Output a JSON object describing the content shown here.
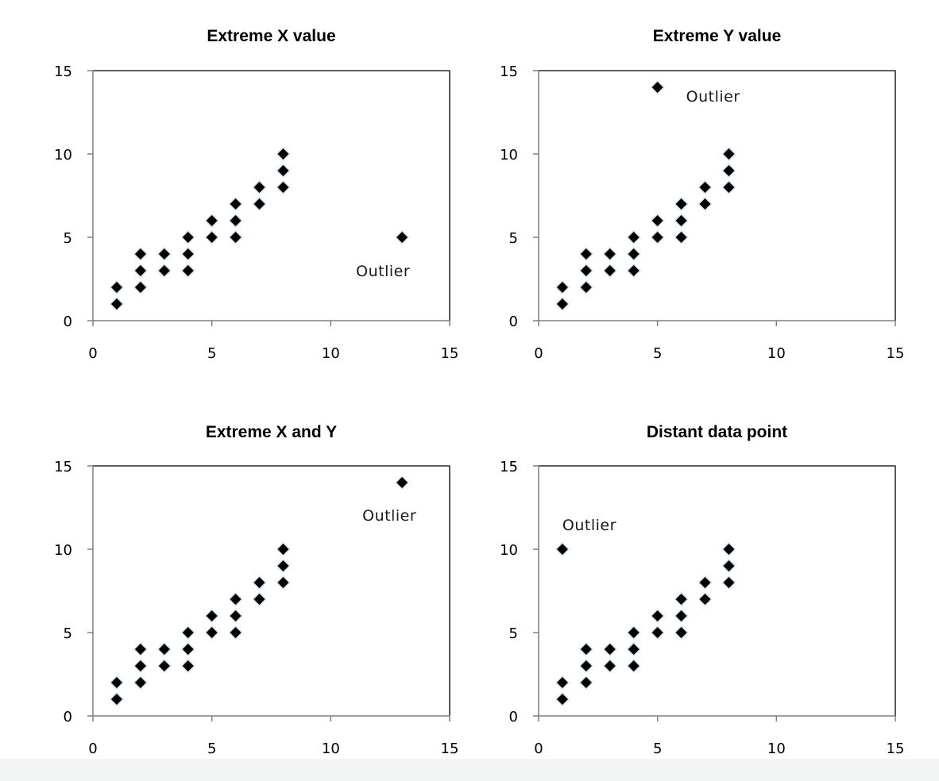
{
  "colors": {
    "marker_fill": "#000000",
    "marker_halo": "#cfe0ef",
    "axis": "#7f7f7f",
    "frame": "#000000",
    "background": "#ffffff"
  },
  "chart_data": [
    {
      "type": "scatter",
      "title": "Extreme X value",
      "xlabel": "",
      "ylabel": "",
      "xlim": [
        0,
        15
      ],
      "ylim": [
        0,
        15
      ],
      "xticks": [
        "0",
        "5",
        "10",
        "15"
      ],
      "yticks": [
        "0",
        "5",
        "10",
        "15"
      ],
      "grid": false,
      "marker": "diamond",
      "points": [
        [
          1,
          1
        ],
        [
          1,
          2
        ],
        [
          2,
          2
        ],
        [
          2,
          3
        ],
        [
          2,
          4
        ],
        [
          3,
          3
        ],
        [
          3,
          4
        ],
        [
          4,
          3
        ],
        [
          4,
          4
        ],
        [
          4,
          5
        ],
        [
          5,
          5
        ],
        [
          5,
          6
        ],
        [
          6,
          5
        ],
        [
          6,
          6
        ],
        [
          6,
          7
        ],
        [
          7,
          7
        ],
        [
          7,
          8
        ],
        [
          8,
          8
        ],
        [
          8,
          9
        ],
        [
          8,
          10
        ],
        [
          13,
          5
        ]
      ],
      "annotations": [
        {
          "text": "Outlier",
          "x": 13,
          "y": 5,
          "placement": "below-left"
        }
      ]
    },
    {
      "type": "scatter",
      "title": "Extreme Y value",
      "xlabel": "",
      "ylabel": "",
      "xlim": [
        0,
        15
      ],
      "ylim": [
        0,
        15
      ],
      "xticks": [
        "0",
        "5",
        "10",
        "15"
      ],
      "yticks": [
        "0",
        "5",
        "10",
        "15"
      ],
      "grid": false,
      "marker": "diamond",
      "points": [
        [
          1,
          1
        ],
        [
          1,
          2
        ],
        [
          2,
          2
        ],
        [
          2,
          3
        ],
        [
          2,
          4
        ],
        [
          3,
          3
        ],
        [
          3,
          4
        ],
        [
          4,
          3
        ],
        [
          4,
          4
        ],
        [
          4,
          5
        ],
        [
          5,
          5
        ],
        [
          5,
          6
        ],
        [
          6,
          5
        ],
        [
          6,
          6
        ],
        [
          6,
          7
        ],
        [
          7,
          7
        ],
        [
          7,
          8
        ],
        [
          8,
          8
        ],
        [
          8,
          9
        ],
        [
          8,
          10
        ],
        [
          5,
          14
        ]
      ],
      "annotations": [
        {
          "text": "Outlier",
          "x": 5,
          "y": 14,
          "placement": "right"
        }
      ]
    },
    {
      "type": "scatter",
      "title": "Extreme X and Y",
      "xlabel": "",
      "ylabel": "",
      "xlim": [
        0,
        15
      ],
      "ylim": [
        0,
        15
      ],
      "xticks": [
        "0",
        "5",
        "10",
        "15"
      ],
      "yticks": [
        "0",
        "5",
        "10",
        "15"
      ],
      "grid": false,
      "marker": "diamond",
      "points": [
        [
          1,
          1
        ],
        [
          1,
          2
        ],
        [
          2,
          2
        ],
        [
          2,
          3
        ],
        [
          2,
          4
        ],
        [
          3,
          3
        ],
        [
          3,
          4
        ],
        [
          4,
          3
        ],
        [
          4,
          4
        ],
        [
          4,
          5
        ],
        [
          5,
          5
        ],
        [
          5,
          6
        ],
        [
          6,
          5
        ],
        [
          6,
          6
        ],
        [
          6,
          7
        ],
        [
          7,
          7
        ],
        [
          7,
          8
        ],
        [
          8,
          8
        ],
        [
          8,
          9
        ],
        [
          8,
          10
        ],
        [
          13,
          14
        ]
      ],
      "annotations": [
        {
          "text": "Outlier",
          "x": 13,
          "y": 14,
          "placement": "below"
        }
      ]
    },
    {
      "type": "scatter",
      "title": "Distant data point",
      "xlabel": "",
      "ylabel": "",
      "xlim": [
        0,
        15
      ],
      "ylim": [
        0,
        15
      ],
      "xticks": [
        "0",
        "5",
        "10",
        "15"
      ],
      "yticks": [
        "0",
        "5",
        "10",
        "15"
      ],
      "grid": false,
      "marker": "diamond",
      "points": [
        [
          1,
          1
        ],
        [
          1,
          2
        ],
        [
          2,
          2
        ],
        [
          2,
          3
        ],
        [
          2,
          4
        ],
        [
          3,
          3
        ],
        [
          3,
          4
        ],
        [
          4,
          3
        ],
        [
          4,
          4
        ],
        [
          4,
          5
        ],
        [
          5,
          5
        ],
        [
          5,
          6
        ],
        [
          6,
          5
        ],
        [
          6,
          6
        ],
        [
          6,
          7
        ],
        [
          7,
          7
        ],
        [
          7,
          8
        ],
        [
          8,
          8
        ],
        [
          8,
          9
        ],
        [
          8,
          10
        ],
        [
          1,
          10
        ]
      ],
      "annotations": [
        {
          "text": "Outlier",
          "x": 1,
          "y": 10,
          "placement": "above-right"
        }
      ]
    }
  ]
}
